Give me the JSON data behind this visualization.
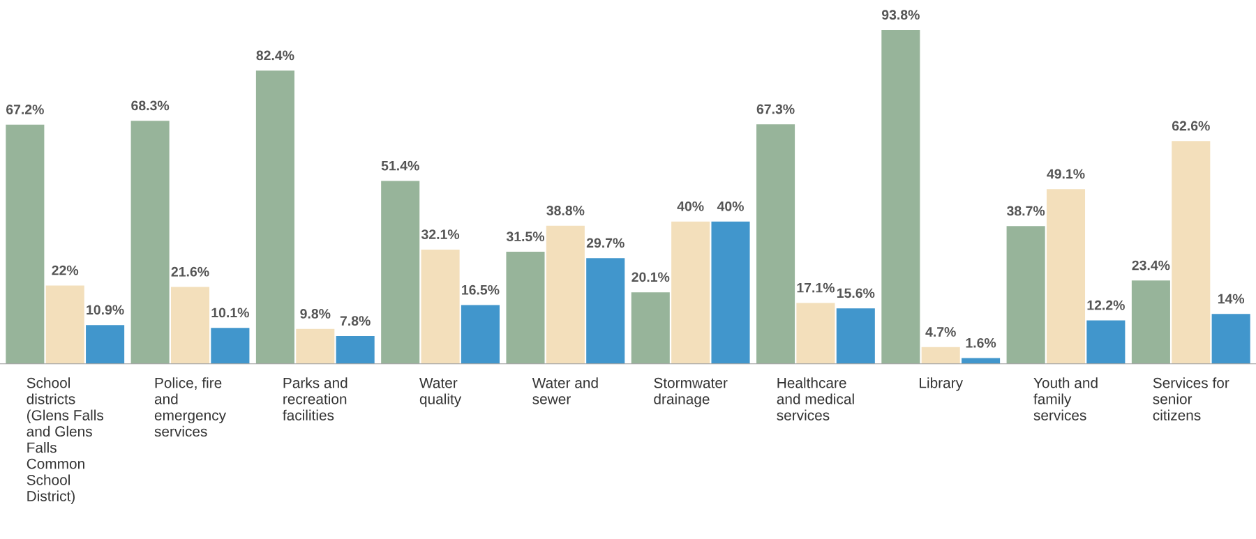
{
  "chart_data": {
    "type": "bar",
    "categories": [
      "School\ndistricts\n(Glens Falls\nand Glens\nFalls\nCommon\nSchool\nDistrict)",
      "Police, fire\nand\nemergency\nservices",
      "Parks and\nrecreation\nfacilities",
      "Water\nquality",
      "Water and\nsewer",
      "Stormwater\ndrainage",
      "Healthcare\nand medical\nservices",
      "Library",
      "Youth and\nfamily\nservices",
      "Services for\nsenior\ncitizens"
    ],
    "series": [
      {
        "color": "#97b49a",
        "values": [
          67.2,
          68.3,
          82.4,
          51.4,
          31.5,
          20.1,
          67.3,
          93.8,
          38.7,
          23.4
        ],
        "value_labels": [
          "67.2%",
          "68.3%",
          "82.4%",
          "51.4%",
          "31.5%",
          "20.1%",
          "67.3%",
          "93.8%",
          "38.7%",
          "23.4%"
        ]
      },
      {
        "color": "#f3dfbb",
        "values": [
          22,
          21.6,
          9.8,
          32.1,
          38.8,
          40,
          17.1,
          4.7,
          49.1,
          62.6
        ],
        "value_labels": [
          "22%",
          "21.6%",
          "9.8%",
          "32.1%",
          "38.8%",
          "40%",
          "17.1%",
          "4.7%",
          "49.1%",
          "62.6%"
        ]
      },
      {
        "color": "#4196cc",
        "values": [
          10.9,
          10.1,
          7.8,
          16.5,
          29.7,
          40,
          15.6,
          1.6,
          12.2,
          14
        ],
        "value_labels": [
          "10.9%",
          "10.1%",
          "7.8%",
          "16.5%",
          "29.7%",
          "40%",
          "15.6%",
          "1.6%",
          "12.2%",
          "14%"
        ]
      }
    ],
    "grid": false,
    "legend": false
  }
}
